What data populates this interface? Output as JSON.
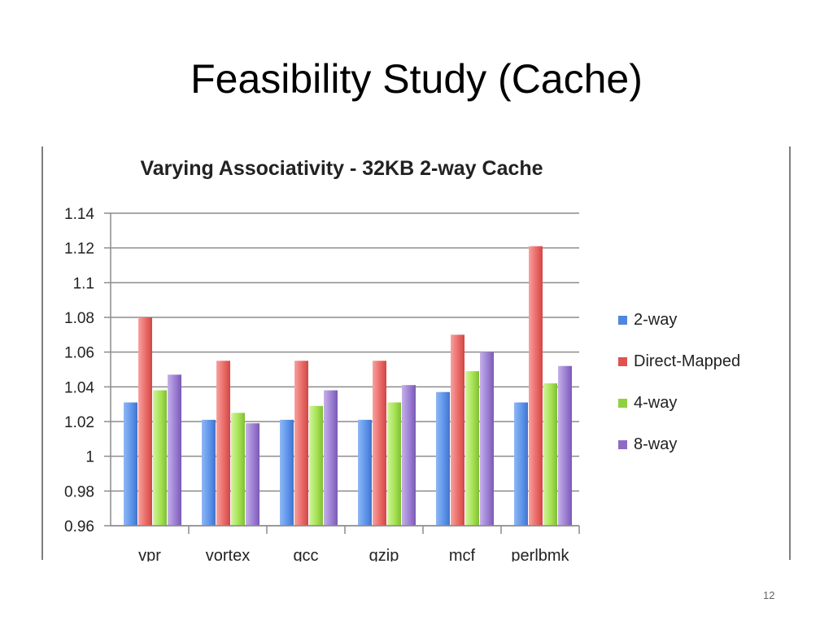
{
  "slide": {
    "title": "Feasibility Study (Cache)",
    "page_number": "12"
  },
  "chart_data": {
    "type": "bar",
    "title": "Varying Associativity - 32KB 2-way Cache",
    "xlabel": "",
    "ylabel": "",
    "categories": [
      "vpr",
      "vortex",
      "gcc",
      "gzip",
      "mcf",
      "perlbmk"
    ],
    "series": [
      {
        "name": "2-way",
        "color": "#4f86e0",
        "values": [
          1.031,
          1.021,
          1.021,
          1.021,
          1.037,
          1.031
        ]
      },
      {
        "name": "Direct-Mapped",
        "color": "#e0524f",
        "values": [
          1.08,
          1.055,
          1.055,
          1.055,
          1.07,
          1.121
        ]
      },
      {
        "name": "4-way",
        "color": "#8fd13f",
        "values": [
          1.038,
          1.025,
          1.029,
          1.031,
          1.049,
          1.042
        ]
      },
      {
        "name": "8-way",
        "color": "#8e6cc4",
        "values": [
          1.047,
          1.019,
          1.038,
          1.041,
          1.06,
          1.052
        ]
      }
    ],
    "ylim": [
      0.96,
      1.14
    ],
    "yticks": [
      "1.14",
      "1.12",
      "1.1",
      "1.08",
      "1.06",
      "1.04",
      "1.02",
      "1",
      "0.98",
      "0.96"
    ],
    "grid": true,
    "legend_position": "right"
  }
}
